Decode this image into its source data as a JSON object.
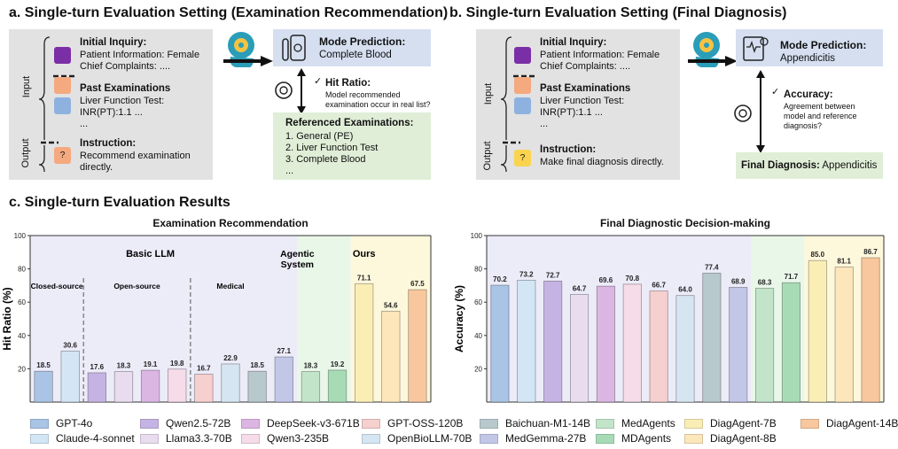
{
  "panel_a": {
    "title": "a. Single-turn Evaluation Setting (Examination Recommendation)",
    "input_label": "Input",
    "output_label": "Output",
    "initial_inquiry_title": "Initial Inquiry:",
    "initial_inquiry_line1": "Patient Information: Female",
    "initial_inquiry_line2": "Chief Complaints: ....",
    "past_exam_title": "Past Examinations",
    "past_exam_line1": "Liver Function Test:",
    "past_exam_line2": "INR(PT):1.1 ...",
    "past_exam_line3": "...",
    "instruction_title": "Instruction:",
    "instruction_line1": "Recommend examination",
    "instruction_line2": "directly.",
    "question_mark": "?",
    "prediction_title": "Mode Prediction:",
    "prediction_value": "Complete Blood",
    "metric_title": "Hit Ratio:",
    "metric_line1": "Model recommended",
    "metric_line2": "examination occur in real list?",
    "check": "✓",
    "ref_title": "Referenced Examinations:",
    "ref_items": [
      "1. General (PE)",
      "2. Liver Function Test",
      "3. Complete Blood",
      "..."
    ]
  },
  "panel_b": {
    "title": "b. Single-turn Evaluation Setting (Final Diagnosis)",
    "input_label": "Input",
    "output_label": "Output",
    "initial_inquiry_title": "Initial Inquiry:",
    "initial_inquiry_line1": "Patient Information: Female",
    "initial_inquiry_line2": "Chief Complaints: ....",
    "past_exam_title": "Past Examinations",
    "past_exam_line1": "Liver Function Test:",
    "past_exam_line2": "INR(PT):1.1 ...",
    "past_exam_line3": "...",
    "instruction_title": "Instruction:",
    "instruction_line1": "Make final diagnosis directly.",
    "question_mark": "?",
    "prediction_title": "Mode Prediction:",
    "prediction_value": "Appendicitis",
    "metric_title": "Accuracy:",
    "metric_line1": "Agreement between",
    "metric_line2": "model and reference",
    "metric_line3": "diagnosis?",
    "check": "✓",
    "final_dx_title": "Final Diagnosis:",
    "final_dx_value": "Appendicitis"
  },
  "panel_c": {
    "title": "c. Single-turn Evaluation Results"
  },
  "colors": {
    "GPT-4o": "#a9c4e4",
    "Claude-4-sonnet": "#d3e6f5",
    "Qwen2.5-72B": "#c5b4e3",
    "Llama3.3-70B": "#e9dcef",
    "DeepSeek-v3-671B": "#dcb6e3",
    "Qwen3-235B": "#f6dbe9",
    "GPT-OSS-120B": "#f6cfcf",
    "OpenBioLLM-70B": "#d6e5f2",
    "Baichuan-M1-14B": "#b8c9cd",
    "MedGemma-27B": "#c2c7e8",
    "MedAgents": "#c2e5c9",
    "MDAgents": "#a7dbb6",
    "DiagAgent-7B": "#fbeeb5",
    "DiagAgent-8B": "#fce6ba",
    "DiagAgent-14B": "#f8c79e"
  },
  "legend": [
    "GPT-4o",
    "Claude-4-sonnet",
    "Qwen2.5-72B",
    "Llama3.3-70B",
    "DeepSeek-v3-671B",
    "Qwen3-235B",
    "GPT-OSS-120B",
    "OpenBioLLM-70B",
    "Baichuan-M1-14B",
    "MedGemma-27B",
    "MedAgents",
    "MDAgents",
    "DiagAgent-7B",
    "DiagAgent-8B",
    "DiagAgent-14B"
  ],
  "chart_data": [
    {
      "type": "bar",
      "title": "Examination Recommendation",
      "ylabel": "Hit Ratio (%)",
      "xlabel": "",
      "ylim": [
        0,
        100
      ],
      "yticks": [
        20,
        40,
        60,
        80,
        100
      ],
      "grid": false,
      "groups": [
        {
          "label": "Basic LLM",
          "span": [
            0,
            8
          ]
        },
        {
          "label": "Agentic System",
          "span": [
            9,
            10
          ]
        },
        {
          "label": "Ours",
          "span": [
            11,
            13
          ]
        }
      ],
      "subgroups": [
        {
          "label": "Closed-source",
          "span": [
            0,
            1
          ]
        },
        {
          "label": "Open-source",
          "span": [
            2,
            5
          ]
        },
        {
          "label": "Medical",
          "span": [
            6,
            8
          ]
        }
      ],
      "categories": [
        "GPT-4o",
        "Claude-4-sonnet",
        "Qwen2.5-72B",
        "Llama3.3-70B",
        "DeepSeek-v3-671B",
        "Qwen3-235B",
        "GPT-OSS-120B",
        "OpenBioLLM-70B",
        "Baichuan-M1-14B",
        "MedGemma-27B",
        "MedAgents",
        "MDAgents",
        "DiagAgent-7B",
        "DiagAgent-8B",
        "DiagAgent-14B"
      ],
      "bars": [
        {
          "model": "GPT-4o",
          "value": 18.5,
          "label": "18.5"
        },
        {
          "model": "Claude-4-sonnet",
          "value": 30.6,
          "label": "30.6"
        },
        {
          "model": "Qwen2.5-72B",
          "value": 17.6,
          "label": "17.6"
        },
        {
          "model": "Llama3.3-70B",
          "value": 18.3,
          "label": "18.3"
        },
        {
          "model": "DeepSeek-v3-671B",
          "value": 19.1,
          "label": "19.1"
        },
        {
          "model": "Qwen3-235B",
          "value": 19.8,
          "label": "19.8"
        },
        {
          "model": "GPT-OSS-120B",
          "value": 16.7,
          "label": "16.7"
        },
        {
          "model": "OpenBioLLM-70B",
          "value": 22.9,
          "label": "22.9"
        },
        {
          "model": "Baichuan-M1-14B",
          "value": 18.5,
          "label": "18.5"
        },
        {
          "model": "MedGemma-27B",
          "value": 27.1,
          "label": "27.1"
        },
        {
          "model": "MedAgents",
          "value": 18.3,
          "label": "18.3"
        },
        {
          "model": "MDAgents",
          "value": 19.2,
          "label": "19.2"
        },
        {
          "model": "DiagAgent-7B",
          "value": 71.1,
          "label": "71.1"
        },
        {
          "model": "DiagAgent-8B",
          "value": 54.6,
          "label": "54.6"
        },
        {
          "model": "DiagAgent-14B",
          "value": 67.5,
          "label": "67.5"
        }
      ]
    },
    {
      "type": "bar",
      "title": "Final Diagnostic Decision-making",
      "ylabel": "Accuracy (%)",
      "xlabel": "",
      "ylim": [
        0,
        100
      ],
      "yticks": [
        20,
        40,
        60,
        80,
        100
      ],
      "grid": false,
      "categories": [
        "GPT-4o",
        "Claude-4-sonnet",
        "Qwen2.5-72B",
        "Llama3.3-70B",
        "DeepSeek-v3-671B",
        "Qwen3-235B",
        "GPT-OSS-120B",
        "OpenBioLLM-70B",
        "Baichuan-M1-14B",
        "MedGemma-27B",
        "MedAgents",
        "MDAgents",
        "DiagAgent-7B",
        "DiagAgent-8B",
        "DiagAgent-14B"
      ],
      "bars": [
        {
          "model": "GPT-4o",
          "value": 70.2,
          "label": "70.2"
        },
        {
          "model": "Claude-4-sonnet",
          "value": 73.2,
          "label": "73.2"
        },
        {
          "model": "Qwen2.5-72B",
          "value": 72.7,
          "label": "72.7"
        },
        {
          "model": "Llama3.3-70B",
          "value": 64.7,
          "label": "64.7"
        },
        {
          "model": "DeepSeek-v3-671B",
          "value": 69.6,
          "label": "69.6"
        },
        {
          "model": "Qwen3-235B",
          "value": 70.8,
          "label": "70.8"
        },
        {
          "model": "GPT-OSS-120B",
          "value": 66.7,
          "label": "66.7"
        },
        {
          "model": "OpenBioLLM-70B",
          "value": 64.0,
          "label": "64.0"
        },
        {
          "model": "Baichuan-M1-14B",
          "value": 77.4,
          "label": "77.4"
        },
        {
          "model": "MedGemma-27B",
          "value": 68.9,
          "label": "68.9"
        },
        {
          "model": "MedAgents",
          "value": 68.3,
          "label": "68.3"
        },
        {
          "model": "MDAgents",
          "value": 71.7,
          "label": "71.7"
        },
        {
          "model": "DiagAgent-7B",
          "value": 85.0,
          "label": "85.0"
        },
        {
          "model": "DiagAgent-8B",
          "value": 81.1,
          "label": "81.1"
        },
        {
          "model": "DiagAgent-14B",
          "value": 86.7,
          "label": "86.7"
        }
      ]
    }
  ]
}
